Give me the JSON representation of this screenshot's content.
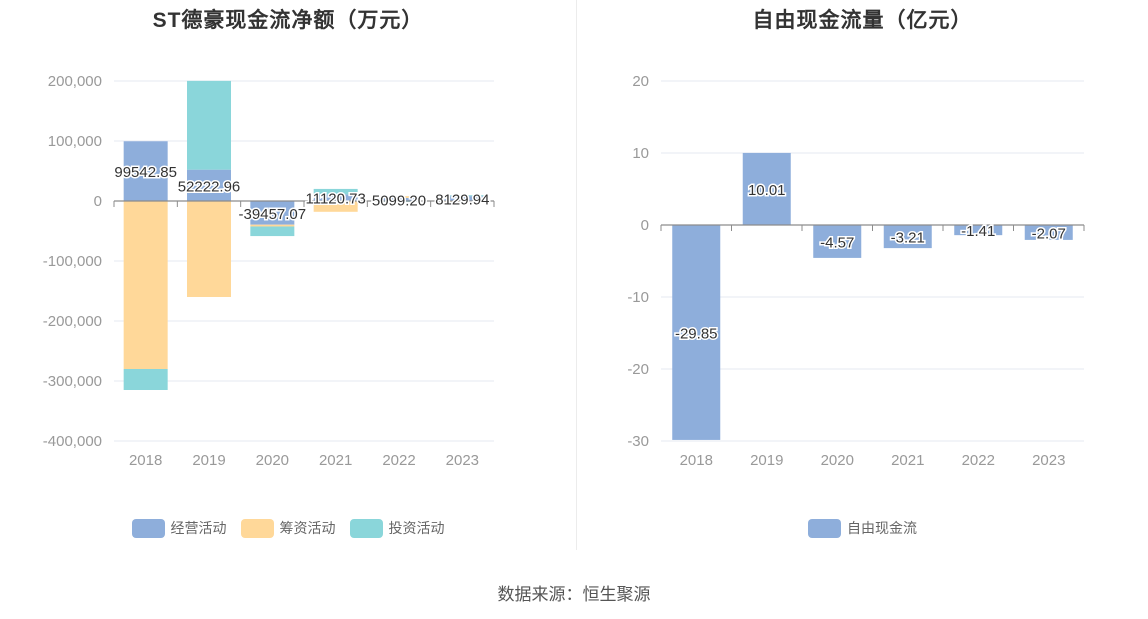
{
  "source_label": "数据来源：恒生聚源",
  "chart_data": [
    {
      "type": "bar",
      "stacked": true,
      "title": "ST德豪现金流净额（万元）",
      "categories": [
        "2018",
        "2019",
        "2020",
        "2021",
        "2022",
        "2023"
      ],
      "ylim": [
        -400000,
        200000
      ],
      "yticks": [
        -400000,
        -300000,
        -200000,
        -100000,
        0,
        100000,
        200000
      ],
      "ytick_labels": [
        "-400,000",
        "-300,000",
        "-200,000",
        "-100,000",
        "0",
        "100,000",
        "200,000"
      ],
      "grid": true,
      "legend_position": "bottom",
      "series": [
        {
          "name": "经营活动",
          "color": "#8eaedb",
          "values": [
            99542.85,
            52222.96,
            -39457.07,
            11120.73,
            5099.2,
            8129.94
          ],
          "data_labels": [
            "99542.85",
            "52222.96",
            "-39457.07",
            "11120.73",
            "5099.20",
            "8129.94"
          ]
        },
        {
          "name": "筹资活动",
          "color": "#ffd899",
          "values": [
            -280000,
            -160000,
            -3000,
            -18000,
            3000,
            -1500
          ]
        },
        {
          "name": "投资活动",
          "color": "#8ad6da",
          "values": [
            -35000,
            148000,
            -16000,
            9000,
            -1500,
            1500
          ]
        }
      ]
    },
    {
      "type": "bar",
      "title": "自由现金流量（亿元）",
      "categories": [
        "2018",
        "2019",
        "2020",
        "2021",
        "2022",
        "2023"
      ],
      "ylim": [
        -30,
        20
      ],
      "yticks": [
        -30,
        -20,
        -10,
        0,
        10,
        20
      ],
      "ytick_labels": [
        "-30",
        "-20",
        "-10",
        "0",
        "10",
        "20"
      ],
      "grid": true,
      "legend_position": "bottom",
      "series": [
        {
          "name": "自由现金流",
          "color": "#8eaedb",
          "values": [
            -29.85,
            10.01,
            -4.57,
            -3.21,
            -1.41,
            -2.07
          ],
          "data_labels": [
            "-29.85",
            "10.01",
            "-4.57",
            "-3.21",
            "-1.41",
            "-2.07"
          ]
        }
      ]
    }
  ]
}
